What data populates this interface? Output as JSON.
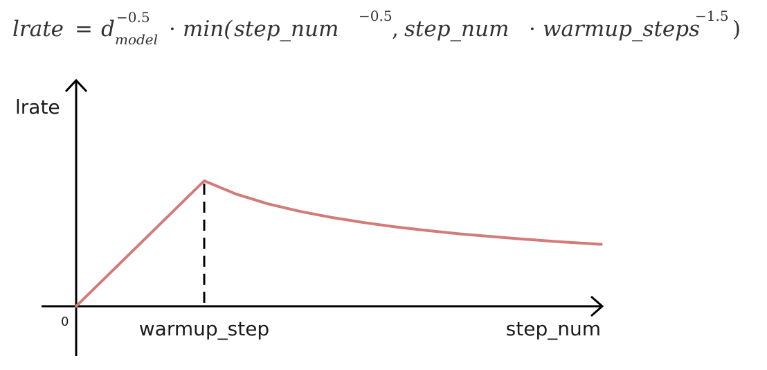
{
  "formula": {
    "lhs": "lrate",
    "eq": "=",
    "d": "d",
    "d_sup": "−0.5",
    "d_sub": "model",
    "dot": "·",
    "min": "min(",
    "arg1": "step_num",
    "arg1_sup": "−0.5",
    "comma": ",",
    "arg2a": "step_num",
    "dot2": "·",
    "arg2b": "warmup_steps",
    "arg2b_sup": "−1.5",
    "close": ")"
  },
  "chart_data": {
    "type": "line",
    "title": "",
    "ylabel": "lrate",
    "xlabel": "step_num",
    "origin_label": "0",
    "x_marker_label": "warmup_step",
    "warmup": 1,
    "xlim": [
      0,
      4.1
    ],
    "ylim": [
      0,
      1.7
    ],
    "series": [
      {
        "color": "#d27b78",
        "x": [
          0,
          1,
          1.25,
          1.5,
          1.75,
          2,
          2.25,
          2.5,
          2.75,
          3,
          3.25,
          3.5,
          3.75,
          4.1
        ],
        "y": [
          0,
          1,
          0.894,
          0.816,
          0.756,
          0.707,
          0.667,
          0.632,
          0.603,
          0.577,
          0.555,
          0.535,
          0.516,
          0.494
        ]
      }
    ],
    "marker_line": {
      "style": "dashed",
      "color": "#000000"
    },
    "grid": false
  }
}
